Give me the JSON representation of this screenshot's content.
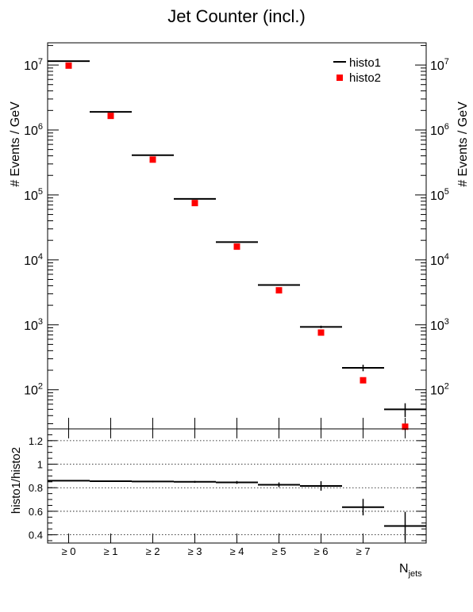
{
  "chart_data": {
    "type": "scatter",
    "title": "Jet Counter (incl.)",
    "categories": [
      "≥ 0",
      "≥ 1",
      "≥ 2",
      "≥ 3",
      "≥ 4",
      "≥ 5",
      "≥ 6",
      "≥ 7",
      ""
    ],
    "xlabel": "N",
    "xlabel_sub": "jets",
    "top": {
      "ylabel": "# Events / GeV",
      "yscale": "log",
      "ylim": [
        25,
        22000000
      ],
      "yticks": [
        "10",
        "10",
        "10",
        "10",
        "10",
        "10"
      ],
      "ytick_exps": [
        "2",
        "3",
        "4",
        "5",
        "6",
        "7"
      ],
      "ytick_values": [
        100,
        1000,
        10000,
        100000,
        1000000,
        10000000
      ],
      "legend_position": "top-right",
      "series": [
        {
          "name": "histo1",
          "style": "line",
          "color": "#000000",
          "values": [
            11500000,
            1900000,
            410000,
            87000,
            18800,
            4100,
            930,
            218,
            50
          ],
          "errors": [
            0,
            0,
            0,
            0,
            0,
            0,
            40,
            25,
            12
          ]
        },
        {
          "name": "histo2",
          "style": "marker",
          "color": "#ff0000",
          "values": [
            9800000,
            1650000,
            350000,
            75000,
            16000,
            3400,
            760,
            140,
            27
          ],
          "errors": [
            0,
            0,
            0,
            0,
            0,
            0,
            0,
            0,
            0
          ]
        }
      ]
    },
    "bottom": {
      "ylabel": "histo1/histo2",
      "ylim": [
        0.33,
        1.3
      ],
      "yticks": [
        "0.4",
        "0.6",
        "0.8",
        "1",
        "1.2"
      ],
      "ytick_values": [
        0.4,
        0.6,
        0.8,
        1.0,
        1.2
      ],
      "grid": true,
      "values": [
        0.86,
        0.855,
        0.853,
        0.85,
        0.845,
        0.825,
        0.815,
        0.635,
        0.475
      ],
      "errors": [
        0.004,
        0.005,
        0.006,
        0.008,
        0.012,
        0.02,
        0.04,
        0.07,
        0.12
      ]
    }
  }
}
